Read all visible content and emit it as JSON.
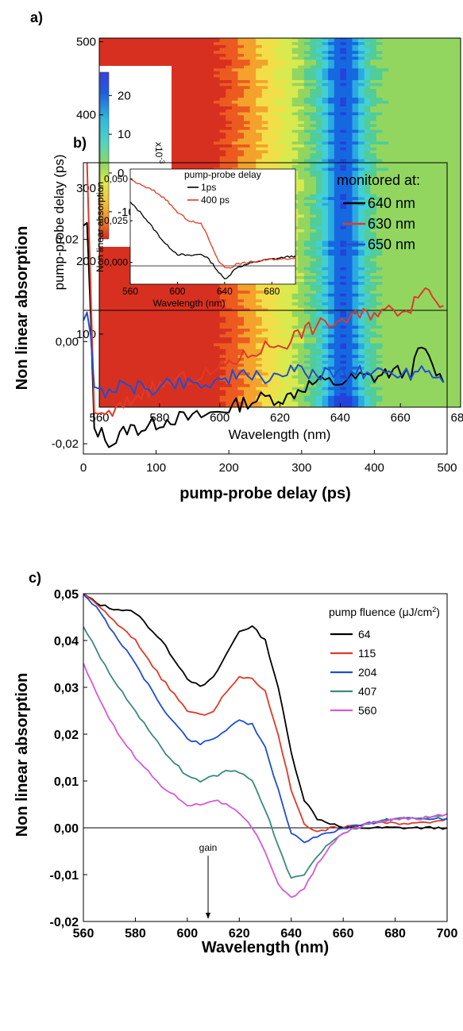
{
  "chart_data": [
    {
      "type": "heatmap",
      "panel_label": "a)",
      "xlabel": "Wavelength (nm)",
      "ylabel": "pump-probe delay (ps)",
      "xlim": [
        560,
        680
      ],
      "ylim": [
        0,
        505
      ],
      "x_ticks": [
        "560",
        "580",
        "600",
        "620",
        "640",
        "660",
        "680"
      ],
      "y_ticks": [
        "100",
        "200",
        "300",
        "400",
        "500"
      ],
      "colorbar": {
        "ticks": [
          "20",
          "10",
          "0",
          "-10"
        ],
        "range": [
          -17,
          26
        ],
        "scale_label_base": "x10",
        "scale_label_exp": "-3",
        "colors": [
          "#d83020",
          "#ec5a20",
          "#f4a22c",
          "#f2de48",
          "#d8ea4e",
          "#92d660",
          "#52cc98",
          "#42d0d6",
          "#2aaae0",
          "#1668e0",
          "#2442dc",
          "#4a3ee2"
        ]
      },
      "features": {
        "negative_band_center_nm": 640,
        "negative_band_range_nm": [
          632,
          648
        ],
        "positive_region_below_nm": 628,
        "early_delay_band_ps": 20
      }
    },
    {
      "type": "line",
      "panel_label": "b)",
      "xlabel": "pump-probe delay (ps)",
      "ylabel": "Non linear absorption",
      "xlim": [
        0,
        500
      ],
      "ylim": [
        -0.022,
        0.035
      ],
      "x_ticks": [
        "0",
        "100",
        "200",
        "300",
        "400",
        "500"
      ],
      "y_ticks": [
        "0,02",
        "0,00",
        "-0,02"
      ],
      "legend_title": "monitored at:",
      "series": [
        {
          "name": "640 nm",
          "color": "#000000",
          "x": [
            0,
            5,
            10,
            15,
            25,
            40,
            60,
            80,
            100,
            120,
            150,
            180,
            200,
            220,
            250,
            280,
            300,
            320,
            350,
            380,
            400,
            420,
            450,
            465,
            480,
            495
          ],
          "y": [
            0.022,
            0.023,
            0.004,
            -0.017,
            -0.018,
            -0.02,
            -0.017,
            -0.017,
            -0.016,
            -0.015,
            -0.015,
            -0.014,
            -0.013,
            -0.012,
            -0.011,
            -0.011,
            -0.009,
            -0.008,
            -0.008,
            -0.007,
            -0.007,
            -0.006,
            -0.006,
            -0.001,
            -0.005,
            -0.008
          ]
        },
        {
          "name": "630 nm",
          "color": "#e03a28",
          "x": [
            0,
            5,
            10,
            15,
            25,
            40,
            60,
            80,
            100,
            120,
            150,
            180,
            200,
            220,
            250,
            280,
            300,
            320,
            350,
            380,
            400,
            420,
            450,
            465,
            480,
            495
          ],
          "y": [
            0.035,
            0.035,
            0.01,
            -0.013,
            -0.015,
            -0.014,
            -0.012,
            -0.01,
            -0.009,
            -0.008,
            -0.007,
            -0.006,
            -0.004,
            -0.003,
            -0.001,
            0.0,
            0.002,
            0.003,
            0.004,
            0.005,
            0.006,
            0.006,
            0.007,
            0.011,
            0.009,
            0.007
          ]
        },
        {
          "name": "650 nm",
          "color": "#1f4fd0",
          "x": [
            0,
            5,
            10,
            15,
            25,
            40,
            60,
            80,
            100,
            120,
            150,
            180,
            200,
            220,
            250,
            280,
            300,
            320,
            350,
            380,
            400,
            420,
            450,
            465,
            480,
            495
          ],
          "y": [
            0.005,
            0.006,
            0.002,
            -0.01,
            -0.01,
            -0.009,
            -0.009,
            -0.009,
            -0.009,
            -0.008,
            -0.008,
            -0.008,
            -0.007,
            -0.007,
            -0.007,
            -0.006,
            -0.006,
            -0.006,
            -0.006,
            -0.006,
            -0.006,
            -0.006,
            -0.006,
            -0.005,
            -0.006,
            -0.008
          ]
        }
      ],
      "inset": {
        "legend_title": "pump-probe delay",
        "ylabel": "Non linear absorption",
        "xlabel": "Wavelength (nm)",
        "xlim": [
          560,
          700
        ],
        "ylim": [
          -0.013,
          0.056
        ],
        "x_ticks": [
          "560",
          "600",
          "640",
          "680"
        ],
        "y_ticks": [
          "0,050",
          "0,025",
          "0,000"
        ],
        "series": [
          {
            "name": "1ps",
            "color": "#000000",
            "x": [
              560,
              570,
              580,
              590,
              600,
              610,
              620,
              625,
              630,
              635,
              640,
              645,
              650,
              660,
              670,
              680,
              690,
              700
            ],
            "y": [
              0.036,
              0.029,
              0.02,
              0.011,
              0.005,
              0.004,
              0.005,
              0.003,
              -0.001,
              -0.006,
              -0.01,
              -0.007,
              -0.003,
              -0.001,
              0.001,
              0.002,
              0.003,
              0.004
            ]
          },
          {
            "name": "400 ps",
            "color": "#e03a28",
            "x": [
              560,
              570,
              580,
              590,
              600,
              610,
              620,
              625,
              630,
              635,
              640,
              645,
              650,
              660,
              670,
              680,
              690,
              700
            ],
            "y": [
              0.05,
              0.046,
              0.043,
              0.038,
              0.03,
              0.025,
              0.023,
              0.017,
              0.008,
              0.001,
              -0.003,
              -0.003,
              -0.001,
              0.0,
              0.001,
              0.002,
              0.002,
              0.003
            ]
          }
        ]
      }
    },
    {
      "type": "line",
      "panel_label": "c)",
      "xlabel": "Wavelength (nm)",
      "ylabel": "Non linear absorption",
      "xlim": [
        560,
        700
      ],
      "ylim": [
        -0.02,
        0.05
      ],
      "x_ticks": [
        "560",
        "580",
        "600",
        "620",
        "640",
        "660",
        "680",
        "700"
      ],
      "y_ticks": [
        "0,05",
        "0,04",
        "0,03",
        "0,02",
        "0,01",
        "0,00",
        "-0,01",
        "-0,02"
      ],
      "legend_title_prefix": "pump fluence (",
      "legend_title_unit": "μJ/cm",
      "legend_title_exp": "2",
      "legend_title_suffix": ")",
      "annotation": {
        "text": "gain",
        "x": 608
      },
      "series": [
        {
          "name": "64",
          "color": "#000000",
          "x": [
            560,
            565,
            570,
            580,
            590,
            600,
            605,
            610,
            615,
            620,
            625,
            630,
            635,
            640,
            645,
            650,
            655,
            660,
            670,
            680,
            690,
            700
          ],
          "y": [
            0.05,
            0.048,
            0.047,
            0.046,
            0.04,
            0.032,
            0.03,
            0.032,
            0.037,
            0.042,
            0.043,
            0.04,
            0.03,
            0.016,
            0.006,
            0.002,
            0.001,
            0.0,
            0.0,
            0.0,
            0.0,
            0.0
          ]
        },
        {
          "name": "115",
          "color": "#e03a28",
          "x": [
            560,
            565,
            570,
            580,
            590,
            600,
            605,
            610,
            615,
            620,
            625,
            630,
            635,
            640,
            645,
            650,
            655,
            660,
            670,
            680,
            690,
            700
          ],
          "y": [
            0.05,
            0.048,
            0.045,
            0.04,
            0.032,
            0.025,
            0.024,
            0.025,
            0.029,
            0.032,
            0.032,
            0.029,
            0.02,
            0.008,
            0.001,
            -0.001,
            0.0,
            0.0,
            0.001,
            0.001,
            0.001,
            0.002
          ]
        },
        {
          "name": "204",
          "color": "#1f4fd0",
          "x": [
            560,
            565,
            570,
            580,
            590,
            600,
            605,
            610,
            615,
            620,
            625,
            630,
            635,
            640,
            645,
            650,
            655,
            660,
            670,
            680,
            690,
            700
          ],
          "y": [
            0.05,
            0.047,
            0.043,
            0.035,
            0.026,
            0.019,
            0.018,
            0.019,
            0.021,
            0.023,
            0.022,
            0.017,
            0.008,
            -0.001,
            -0.003,
            -0.002,
            -0.001,
            0.0,
            0.001,
            0.002,
            0.002,
            0.002
          ]
        },
        {
          "name": "407",
          "color": "#3a8a80",
          "x": [
            560,
            565,
            570,
            580,
            590,
            600,
            605,
            610,
            615,
            620,
            625,
            630,
            635,
            640,
            645,
            650,
            655,
            660,
            670,
            680,
            690,
            700
          ],
          "y": [
            0.043,
            0.038,
            0.033,
            0.025,
            0.017,
            0.011,
            0.01,
            0.011,
            0.012,
            0.012,
            0.01,
            0.004,
            -0.004,
            -0.011,
            -0.01,
            -0.006,
            -0.003,
            -0.001,
            0.001,
            0.002,
            0.002,
            0.003
          ]
        },
        {
          "name": "560",
          "color": "#d45ad8",
          "x": [
            560,
            565,
            570,
            580,
            590,
            600,
            605,
            610,
            615,
            620,
            625,
            630,
            635,
            640,
            645,
            650,
            655,
            660,
            670,
            680,
            690,
            700
          ],
          "y": [
            0.035,
            0.029,
            0.023,
            0.015,
            0.009,
            0.005,
            0.005,
            0.006,
            0.005,
            0.003,
            0.0,
            -0.005,
            -0.012,
            -0.015,
            -0.013,
            -0.008,
            -0.004,
            -0.001,
            0.001,
            0.002,
            0.002,
            0.003
          ]
        }
      ]
    }
  ]
}
